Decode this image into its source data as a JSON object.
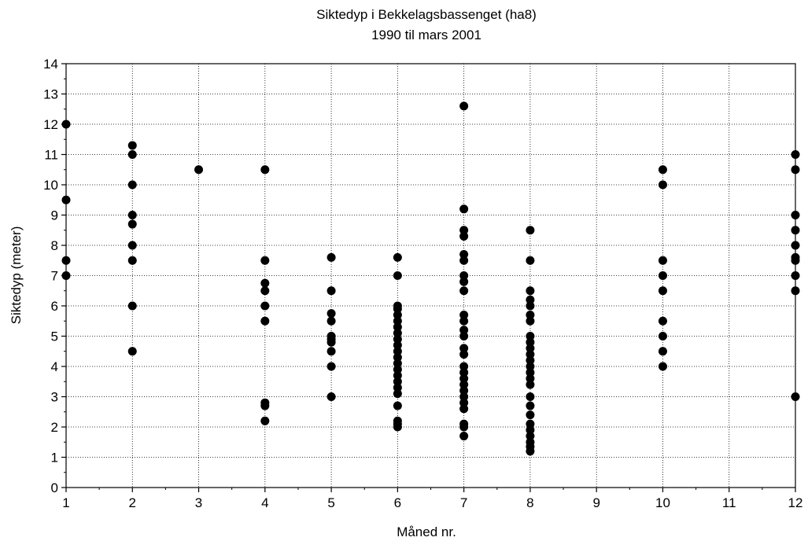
{
  "chart_data": {
    "type": "scatter",
    "title": "Siktedyp i Bekkelagsbassenget (ha8)",
    "subtitle": "1990 til mars 2001",
    "xlabel": "Måned nr.",
    "ylabel": "Siktedyp (meter)",
    "xlim": [
      1,
      12
    ],
    "ylim": [
      0,
      14
    ],
    "x_ticks": [
      "1",
      "2",
      "3",
      "4",
      "5",
      "6",
      "7",
      "8",
      "9",
      "10",
      "11",
      "12"
    ],
    "y_ticks": [
      "0",
      "1",
      "2",
      "3",
      "4",
      "5",
      "6",
      "7",
      "8",
      "9",
      "10",
      "11",
      "12",
      "13",
      "14"
    ],
    "grid": true,
    "marker_color": "#000000",
    "points": [
      {
        "x": 1,
        "y": 12
      },
      {
        "x": 1,
        "y": 9.5
      },
      {
        "x": 1,
        "y": 7.5
      },
      {
        "x": 1,
        "y": 7
      },
      {
        "x": 2,
        "y": 11.3
      },
      {
        "x": 2,
        "y": 11
      },
      {
        "x": 2,
        "y": 10
      },
      {
        "x": 2,
        "y": 9
      },
      {
        "x": 2,
        "y": 8.7
      },
      {
        "x": 2,
        "y": 8
      },
      {
        "x": 2,
        "y": 7.5
      },
      {
        "x": 2,
        "y": 6
      },
      {
        "x": 2,
        "y": 4.5
      },
      {
        "x": 3,
        "y": 10.5
      },
      {
        "x": 4,
        "y": 10.5
      },
      {
        "x": 4,
        "y": 7.5
      },
      {
        "x": 4,
        "y": 6.75
      },
      {
        "x": 4,
        "y": 6.5
      },
      {
        "x": 4,
        "y": 6
      },
      {
        "x": 4,
        "y": 5.5
      },
      {
        "x": 4,
        "y": 2.8
      },
      {
        "x": 4,
        "y": 2.7
      },
      {
        "x": 4,
        "y": 2.2
      },
      {
        "x": 5,
        "y": 7.6
      },
      {
        "x": 5,
        "y": 6.5
      },
      {
        "x": 5,
        "y": 5.75
      },
      {
        "x": 5,
        "y": 5.5
      },
      {
        "x": 5,
        "y": 5
      },
      {
        "x": 5,
        "y": 4.9
      },
      {
        "x": 5,
        "y": 4.8
      },
      {
        "x": 5,
        "y": 4.5
      },
      {
        "x": 5,
        "y": 4
      },
      {
        "x": 5,
        "y": 3
      },
      {
        "x": 6,
        "y": 7.6
      },
      {
        "x": 6,
        "y": 7
      },
      {
        "x": 6,
        "y": 6
      },
      {
        "x": 6,
        "y": 5.9
      },
      {
        "x": 6,
        "y": 5.7
      },
      {
        "x": 6,
        "y": 5.5
      },
      {
        "x": 6,
        "y": 5.3
      },
      {
        "x": 6,
        "y": 5.1
      },
      {
        "x": 6,
        "y": 4.9
      },
      {
        "x": 6,
        "y": 4.7
      },
      {
        "x": 6,
        "y": 4.5
      },
      {
        "x": 6,
        "y": 4.3
      },
      {
        "x": 6,
        "y": 4.1
      },
      {
        "x": 6,
        "y": 3.9
      },
      {
        "x": 6,
        "y": 3.7
      },
      {
        "x": 6,
        "y": 3.5
      },
      {
        "x": 6,
        "y": 3.3
      },
      {
        "x": 6,
        "y": 3.1
      },
      {
        "x": 6,
        "y": 2.7
      },
      {
        "x": 6,
        "y": 2.2
      },
      {
        "x": 6,
        "y": 2.1
      },
      {
        "x": 6,
        "y": 2
      },
      {
        "x": 7,
        "y": 12.6
      },
      {
        "x": 7,
        "y": 9.2
      },
      {
        "x": 7,
        "y": 8.5
      },
      {
        "x": 7,
        "y": 8.3
      },
      {
        "x": 7,
        "y": 7.7
      },
      {
        "x": 7,
        "y": 7.5
      },
      {
        "x": 7,
        "y": 7
      },
      {
        "x": 7,
        "y": 6.8
      },
      {
        "x": 7,
        "y": 6.5
      },
      {
        "x": 7,
        "y": 5.7
      },
      {
        "x": 7,
        "y": 5.5
      },
      {
        "x": 7,
        "y": 5.2
      },
      {
        "x": 7,
        "y": 5
      },
      {
        "x": 7,
        "y": 4.6
      },
      {
        "x": 7,
        "y": 4.4
      },
      {
        "x": 7,
        "y": 4
      },
      {
        "x": 7,
        "y": 3.8
      },
      {
        "x": 7,
        "y": 3.6
      },
      {
        "x": 7,
        "y": 3.4
      },
      {
        "x": 7,
        "y": 3.2
      },
      {
        "x": 7,
        "y": 3
      },
      {
        "x": 7,
        "y": 2.8
      },
      {
        "x": 7,
        "y": 2.6
      },
      {
        "x": 7,
        "y": 2.1
      },
      {
        "x": 7,
        "y": 2
      },
      {
        "x": 7,
        "y": 1.7
      },
      {
        "x": 8,
        "y": 8.5
      },
      {
        "x": 8,
        "y": 7.5
      },
      {
        "x": 8,
        "y": 6.5
      },
      {
        "x": 8,
        "y": 6.2
      },
      {
        "x": 8,
        "y": 6
      },
      {
        "x": 8,
        "y": 5.7
      },
      {
        "x": 8,
        "y": 5.5
      },
      {
        "x": 8,
        "y": 5
      },
      {
        "x": 8,
        "y": 4.8
      },
      {
        "x": 8,
        "y": 4.6
      },
      {
        "x": 8,
        "y": 4.4
      },
      {
        "x": 8,
        "y": 4.2
      },
      {
        "x": 8,
        "y": 4
      },
      {
        "x": 8,
        "y": 3.8
      },
      {
        "x": 8,
        "y": 3.6
      },
      {
        "x": 8,
        "y": 3.4
      },
      {
        "x": 8,
        "y": 3
      },
      {
        "x": 8,
        "y": 2.7
      },
      {
        "x": 8,
        "y": 2.4
      },
      {
        "x": 8,
        "y": 2.1
      },
      {
        "x": 8,
        "y": 1.9
      },
      {
        "x": 8,
        "y": 1.7
      },
      {
        "x": 8,
        "y": 1.5
      },
      {
        "x": 8,
        "y": 1.35
      },
      {
        "x": 8,
        "y": 1.2
      },
      {
        "x": 10,
        "y": 10.5
      },
      {
        "x": 10,
        "y": 10
      },
      {
        "x": 10,
        "y": 7.5
      },
      {
        "x": 10,
        "y": 7
      },
      {
        "x": 10,
        "y": 6.5
      },
      {
        "x": 10,
        "y": 5.5
      },
      {
        "x": 10,
        "y": 5
      },
      {
        "x": 10,
        "y": 4.5
      },
      {
        "x": 10,
        "y": 4
      },
      {
        "x": 12,
        "y": 11
      },
      {
        "x": 12,
        "y": 10.5
      },
      {
        "x": 12,
        "y": 9
      },
      {
        "x": 12,
        "y": 8.5
      },
      {
        "x": 12,
        "y": 8
      },
      {
        "x": 12,
        "y": 7.6
      },
      {
        "x": 12,
        "y": 7.5
      },
      {
        "x": 12,
        "y": 7
      },
      {
        "x": 12,
        "y": 6.5
      },
      {
        "x": 12,
        "y": 3
      }
    ]
  }
}
